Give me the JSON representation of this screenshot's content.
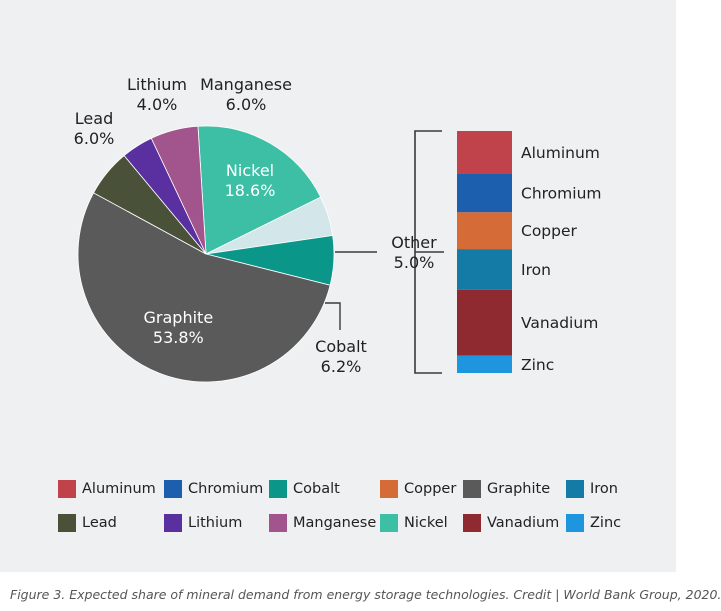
{
  "chart_data": {
    "type": "pie",
    "slices": [
      {
        "name": "Nickel",
        "value": 18.6,
        "label": "18.6%",
        "color": "#3dbfa6"
      },
      {
        "name": "Other",
        "value": 5.0,
        "label": "5.0%",
        "color": "#d3e6ea"
      },
      {
        "name": "Cobalt",
        "value": 6.2,
        "label": "6.2%",
        "color": "#0a978a"
      },
      {
        "name": "Graphite",
        "value": 53.8,
        "label": "53.8%",
        "color": "#5a5a5a"
      },
      {
        "name": "Lead",
        "value": 6.0,
        "label": "6.0%",
        "color": "#4a5139"
      },
      {
        "name": "Lithium",
        "value": 4.0,
        "label": "4.0%",
        "color": "#5a2fa0"
      },
      {
        "name": "Manganese",
        "value": 6.0,
        "label": "6.0%",
        "color": "#a2558d"
      }
    ],
    "other_breakdown": {
      "label": "Other",
      "value_label": "5.0%",
      "segments": [
        {
          "name": "Aluminum",
          "weight": 1.1,
          "color": "#c0424a"
        },
        {
          "name": "Chromium",
          "weight": 1.0,
          "color": "#1b5fae"
        },
        {
          "name": "Copper",
          "weight": 0.95,
          "color": "#d56b36"
        },
        {
          "name": "Iron",
          "weight": 1.05,
          "color": "#147aa6"
        },
        {
          "name": "Vanadium",
          "weight": 1.7,
          "color": "#8f2a31"
        },
        {
          "name": "Zinc",
          "weight": 0.45,
          "color": "#1e96df"
        }
      ]
    },
    "legend": [
      {
        "name": "Aluminum",
        "color": "#c0424a"
      },
      {
        "name": "Chromium",
        "color": "#1b5fae"
      },
      {
        "name": "Cobalt",
        "color": "#0a978a"
      },
      {
        "name": "Copper",
        "color": "#d56b36"
      },
      {
        "name": "Graphite",
        "color": "#5a5a5a"
      },
      {
        "name": "Iron",
        "color": "#147aa6"
      },
      {
        "name": "Lead",
        "color": "#4a5139"
      },
      {
        "name": "Lithium",
        "color": "#5a2fa0"
      },
      {
        "name": "Manganese",
        "color": "#a2558d"
      },
      {
        "name": "Nickel",
        "color": "#3dbfa6"
      },
      {
        "name": "Vanadium",
        "color": "#8f2a31"
      },
      {
        "name": "Zinc",
        "color": "#1e96df"
      }
    ]
  },
  "caption": "Figure 3. Expected share of mineral demand from energy storage technologies. Credit | World Bank Group, 2020."
}
